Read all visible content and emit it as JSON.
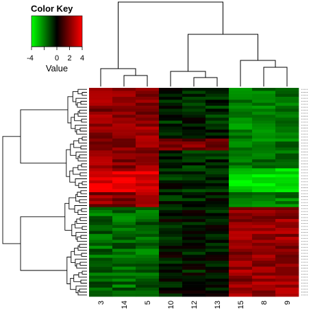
{
  "chart_data": {
    "type": "heatmap",
    "color_key": {
      "title": "Color Key",
      "label": "Value",
      "ticks": [
        "-4",
        "0",
        "2",
        "4"
      ],
      "range": [
        -4,
        4
      ],
      "low_color": "#00ff00",
      "mid_color": "#000000",
      "high_color": "#ff0000"
    },
    "columns": [
      "3",
      "14",
      "5",
      "10",
      "12",
      "13",
      "15",
      "8",
      "9"
    ],
    "column_groups": [
      {
        "columns": [
          "3",
          "14",
          "5"
        ],
        "pattern": "high in upper block, low in lower block"
      },
      {
        "columns": [
          "10",
          "12",
          "13"
        ],
        "pattern": "near zero"
      },
      {
        "columns": [
          "15",
          "8",
          "9"
        ],
        "pattern": "low in upper block, high in lower block"
      }
    ],
    "row_count": 70,
    "row_dendrogram": true,
    "column_dendrogram": true,
    "legend_placement": "top-left"
  }
}
